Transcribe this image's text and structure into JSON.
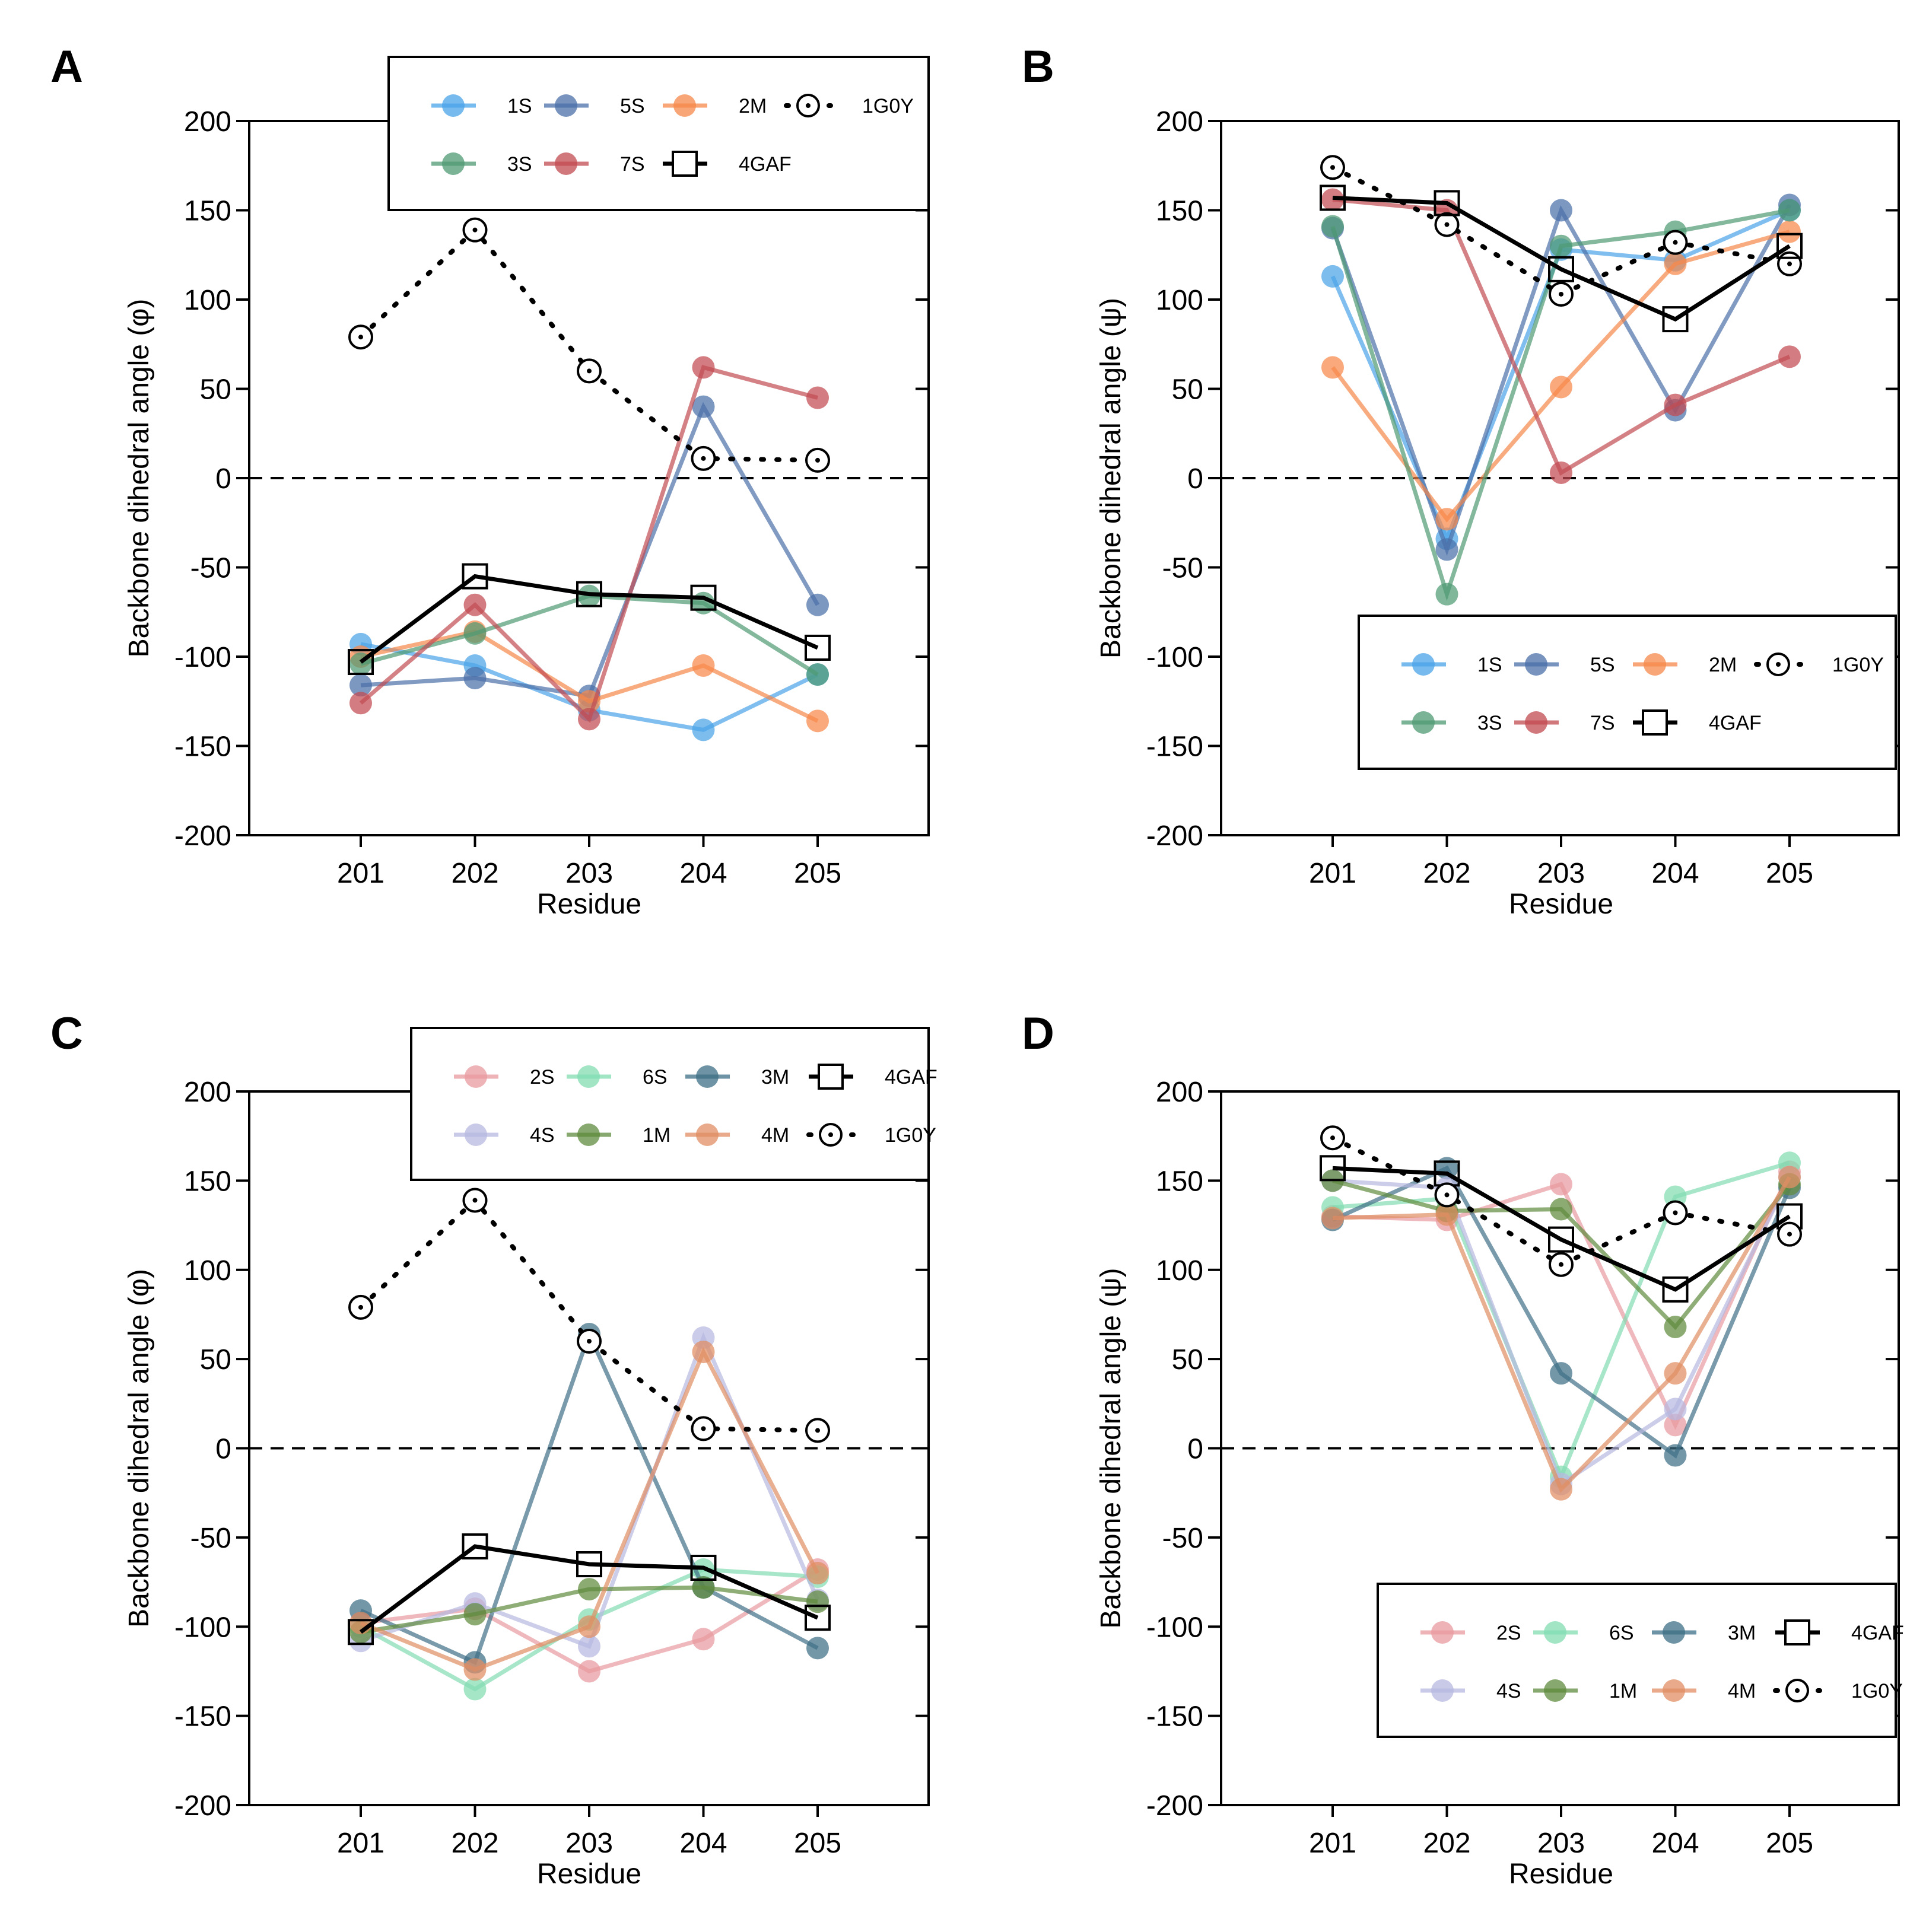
{
  "colors": {
    "1S": "#4aa3e8",
    "5S": "#4a6fa8",
    "2M": "#f6884a",
    "3S": "#4f9a73",
    "7S": "#c24b52",
    "2S": "#e89a9f",
    "6S": "#82dcb2",
    "3M": "#3e6f86",
    "4S": "#b7b8e0",
    "1M": "#5f8b3d",
    "4M": "#e08d63",
    "ref": "#000000"
  },
  "chart_data": [
    {
      "panel": "A",
      "type": "line",
      "xlabel": "Residue",
      "ylabel": "Backbone dihedral angle (φ)",
      "categories": [
        "201",
        "202",
        "203",
        "204",
        "205"
      ],
      "ylim": [
        -200,
        200
      ],
      "yticks": [
        "-200",
        "-150",
        "-100",
        "-50",
        "0",
        "50",
        "100",
        "150",
        "200"
      ],
      "legend_position": "top-right",
      "series": [
        {
          "name": "1S",
          "values": [
            -93,
            -105,
            -130,
            -141,
            -110
          ]
        },
        {
          "name": "5S",
          "values": [
            -116,
            -112,
            -122,
            40,
            -71
          ]
        },
        {
          "name": "2M",
          "values": [
            -100,
            -86,
            -125,
            -105,
            -136
          ]
        },
        {
          "name": "3S",
          "values": [
            -104,
            -87,
            -66,
            -70,
            -110
          ]
        },
        {
          "name": "7S",
          "values": [
            -126,
            -71,
            -135,
            62,
            45
          ]
        },
        {
          "name": "1G0Y",
          "values": [
            79,
            139,
            60,
            11,
            10
          ]
        },
        {
          "name": "4GAF",
          "values": [
            -103,
            -55,
            -65,
            -67,
            -95
          ]
        }
      ]
    },
    {
      "panel": "B",
      "type": "line",
      "xlabel": "Residue",
      "ylabel": "Backbone dihedral angle (ψ)",
      "categories": [
        "201",
        "202",
        "203",
        "204",
        "205"
      ],
      "ylim": [
        -200,
        200
      ],
      "yticks": [
        "-200",
        "-150",
        "-100",
        "-50",
        "0",
        "50",
        "100",
        "150",
        "200"
      ],
      "legend_position": "bottom-right",
      "series": [
        {
          "name": "1S",
          "values": [
            113,
            -34,
            128,
            122,
            150
          ]
        },
        {
          "name": "5S",
          "values": [
            140,
            -40,
            150,
            38,
            153
          ]
        },
        {
          "name": "2M",
          "values": [
            62,
            -23,
            51,
            120,
            138
          ]
        },
        {
          "name": "3S",
          "values": [
            141,
            -65,
            130,
            138,
            150
          ]
        },
        {
          "name": "7S",
          "values": [
            156,
            150,
            3,
            41,
            68
          ]
        },
        {
          "name": "1G0Y",
          "values": [
            174,
            142,
            103,
            132,
            120
          ]
        },
        {
          "name": "4GAF",
          "values": [
            157,
            154,
            117,
            89,
            130
          ]
        }
      ]
    },
    {
      "panel": "C",
      "type": "line",
      "xlabel": "Residue",
      "ylabel": "Backbone dihedral angle (φ)",
      "categories": [
        "201",
        "202",
        "203",
        "204",
        "205"
      ],
      "ylim": [
        -200,
        200
      ],
      "yticks": [
        "-200",
        "-150",
        "-100",
        "-50",
        "0",
        "50",
        "100",
        "150",
        "200"
      ],
      "legend_position": "top-right",
      "series": [
        {
          "name": "2S",
          "values": [
            -98,
            -90,
            -125,
            -107,
            -68
          ]
        },
        {
          "name": "6S",
          "values": [
            -100,
            -135,
            -96,
            -68,
            -72
          ]
        },
        {
          "name": "3M",
          "values": [
            -91,
            -120,
            64,
            -78,
            -112
          ]
        },
        {
          "name": "4S",
          "values": [
            -108,
            -87,
            -111,
            62,
            -85
          ]
        },
        {
          "name": "1M",
          "values": [
            -103,
            -93,
            -79,
            -78,
            -86
          ]
        },
        {
          "name": "4M",
          "values": [
            -98,
            -124,
            -100,
            54,
            -70
          ]
        },
        {
          "name": "4GAF",
          "values": [
            -103,
            -55,
            -65,
            -67,
            -95
          ]
        },
        {
          "name": "1G0Y",
          "values": [
            79,
            139,
            60,
            11,
            10
          ]
        }
      ]
    },
    {
      "panel": "D",
      "type": "line",
      "xlabel": "Residue",
      "ylabel": "Backbone dihedral angle (ψ)",
      "categories": [
        "201",
        "202",
        "203",
        "204",
        "205"
      ],
      "ylim": [
        -200,
        200
      ],
      "yticks": [
        "-200",
        "-150",
        "-100",
        "-50",
        "0",
        "50",
        "100",
        "150",
        "200"
      ],
      "legend_position": "bottom-right",
      "series": [
        {
          "name": "2S",
          "values": [
            130,
            128,
            148,
            13,
            155
          ]
        },
        {
          "name": "6S",
          "values": [
            135,
            140,
            -16,
            141,
            160
          ]
        },
        {
          "name": "3M",
          "values": [
            128,
            157,
            42,
            -4,
            146
          ]
        },
        {
          "name": "4S",
          "values": [
            150,
            146,
            -20,
            22,
            152
          ]
        },
        {
          "name": "1M",
          "values": [
            150,
            133,
            134,
            68,
            148
          ]
        },
        {
          "name": "4M",
          "values": [
            129,
            131,
            -23,
            42,
            152
          ]
        },
        {
          "name": "4GAF",
          "values": [
            157,
            154,
            117,
            89,
            130
          ]
        },
        {
          "name": "1G0Y",
          "values": [
            174,
            142,
            103,
            132,
            120
          ]
        }
      ]
    }
  ],
  "legends": [
    {
      "panel": "A",
      "rows": [
        [
          "1S",
          "5S",
          "2M",
          "1G0Y"
        ],
        [
          "3S",
          "7S",
          "4GAF"
        ]
      ]
    },
    {
      "panel": "B",
      "rows": [
        [
          "1S",
          "5S",
          "2M",
          "1G0Y"
        ],
        [
          "3S",
          "7S",
          "4GAF"
        ]
      ]
    },
    {
      "panel": "C",
      "rows": [
        [
          "2S",
          "6S",
          "3M",
          "4GAF"
        ],
        [
          "4S",
          "1M",
          "4M",
          "1G0Y"
        ]
      ]
    },
    {
      "panel": "D",
      "rows": [
        [
          "2S",
          "6S",
          "3M",
          "4GAF"
        ],
        [
          "4S",
          "1M",
          "4M",
          "1G0Y"
        ]
      ]
    }
  ]
}
